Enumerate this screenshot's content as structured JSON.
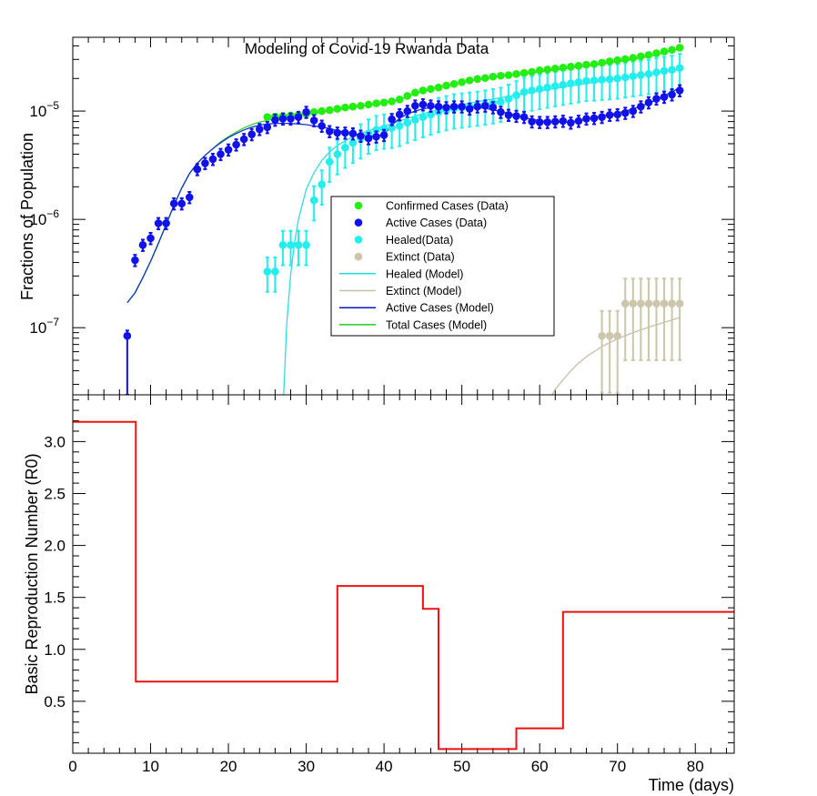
{
  "figure": {
    "title": "Modeling of Covid-19 Rwanda Data"
  },
  "top_panel": {
    "ylabel": "Fractions of Population",
    "legend": [
      {
        "label": "Confirmed Cases (Data)",
        "kind": "marker",
        "color": "#22ee11"
      },
      {
        "label": "Active Cases (Data)",
        "kind": "marker",
        "color": "#1111ee"
      },
      {
        "label": "Healed(Data)",
        "kind": "marker",
        "color": "#22eeee"
      },
      {
        "label": "Extinct (Data)",
        "kind": "marker",
        "color": "#ccc6aa"
      },
      {
        "label": "Healed (Model)",
        "kind": "line",
        "color": "#22dddd"
      },
      {
        "label": "Extinct (Model)",
        "kind": "line",
        "color": "#c8c0a8"
      },
      {
        "label": "Active Cases (Model)",
        "kind": "line",
        "color": "#1111cc"
      },
      {
        "label": "Total Cases (Model)",
        "kind": "line",
        "color": "#22cc22"
      }
    ],
    "ytick_labels": [
      {
        "base": "10",
        "exp": "−5",
        "value": 1e-05
      },
      {
        "base": "10",
        "exp": "−6",
        "value": 1e-06
      },
      {
        "base": "10",
        "exp": "−7",
        "value": 1e-07
      }
    ]
  },
  "bottom_panel": {
    "ylabel": "Basic Reproduction Number (R0)",
    "xlabel": "Time (days)",
    "xtick_labels": [
      "0",
      "10",
      "20",
      "30",
      "40",
      "50",
      "60",
      "70",
      "80"
    ],
    "ytick_labels": [
      "0.5",
      "1.0",
      "1.5",
      "2.0",
      "2.5",
      "3.0"
    ]
  },
  "colors": {
    "confirmed": "#22ee11",
    "active": "#1111ee",
    "healed": "#22eeee",
    "extinct": "#ccc6aa",
    "healed_model": "#33dddd",
    "extinct_model": "#c8c0a8",
    "active_model": "#1133cc",
    "total_model": "#33cc33",
    "r0": "#ee1111"
  },
  "chart_data": [
    {
      "type": "scatter",
      "yscale": "log",
      "xlim": [
        0,
        85
      ],
      "ylim": [
        2.4e-08,
        4.8e-05
      ],
      "series": [
        {
          "name": "Confirmed Cases (Data)",
          "x": [
            25,
            26,
            27,
            28,
            29,
            30,
            31,
            32,
            33,
            34,
            35,
            36,
            37,
            38,
            39,
            40,
            41,
            42,
            43,
            44,
            45,
            46,
            47,
            48,
            49,
            50,
            51,
            52,
            53,
            54,
            55,
            56,
            57,
            58,
            59,
            60,
            61,
            62,
            63,
            64,
            65,
            66,
            67,
            68,
            69,
            70,
            71,
            72,
            73,
            74,
            75,
            76,
            77,
            78
          ],
          "y": [
            8.8e-06,
            8.9e-06,
            9e-06,
            9.1e-06,
            9.2e-06,
            9.4e-06,
            9.8e-06,
            1e-05,
            1.02e-05,
            1.05e-05,
            1.08e-05,
            1.1e-05,
            1.12e-05,
            1.15e-05,
            1.18e-05,
            1.2e-05,
            1.23e-05,
            1.28e-05,
            1.38e-05,
            1.48e-05,
            1.55e-05,
            1.6e-05,
            1.65e-05,
            1.72e-05,
            1.78e-05,
            1.85e-05,
            1.92e-05,
            1.98e-05,
            2.02e-05,
            2.08e-05,
            2.12e-05,
            2.15e-05,
            2.2e-05,
            2.25e-05,
            2.3e-05,
            2.38e-05,
            2.42e-05,
            2.47e-05,
            2.52e-05,
            2.57e-05,
            2.62e-05,
            2.68e-05,
            2.72e-05,
            2.8e-05,
            2.88e-05,
            2.95e-05,
            3.02e-05,
            3.1e-05,
            3.2e-05,
            3.3e-05,
            3.42e-05,
            3.55e-05,
            3.68e-05,
            3.85e-05
          ]
        },
        {
          "name": "Active Cases (Data)",
          "x": [
            7,
            8,
            9,
            10,
            11,
            12,
            13,
            14,
            15,
            16,
            17,
            18,
            19,
            20,
            21,
            22,
            23,
            24,
            25,
            26,
            27,
            28,
            29,
            30,
            31,
            32,
            33,
            34,
            35,
            36,
            37,
            38,
            39,
            40,
            41,
            42,
            43,
            44,
            45,
            46,
            47,
            48,
            49,
            50,
            51,
            52,
            53,
            54,
            55,
            56,
            57,
            58,
            59,
            60,
            61,
            62,
            63,
            64,
            65,
            66,
            67,
            68,
            69,
            70,
            71,
            72,
            73,
            74,
            75,
            76,
            77,
            78
          ],
          "y": [
            8.4e-08,
            4.2e-07,
            5.8e-07,
            6.7e-07,
            9.2e-07,
            9.2e-07,
            1.4e-06,
            1.4e-06,
            1.6e-06,
            2.9e-06,
            3.3e-06,
            3.6e-06,
            4e-06,
            4.4e-06,
            4.9e-06,
            5.5e-06,
            6.1e-06,
            6.8e-06,
            7.1e-06,
            8.3e-06,
            8.5e-06,
            8.5e-06,
            8.8e-06,
            9.8e-06,
            8.2e-06,
            7.3e-06,
            6.5e-06,
            6.3e-06,
            6.3e-06,
            6.2e-06,
            5.9e-06,
            5.6e-06,
            5.8e-06,
            6e-06,
            8.4e-06,
            9.3e-06,
            1e-05,
            1.12e-05,
            1.15e-05,
            1.12e-05,
            1.1e-05,
            1.08e-05,
            1.1e-05,
            1.1e-05,
            1.05e-05,
            1.1e-05,
            1.12e-05,
            1.08e-05,
            9.8e-06,
            9.2e-06,
            9e-06,
            8.8e-06,
            8e-06,
            7.9e-06,
            7.9e-06,
            8e-06,
            8.1e-06,
            7.8e-06,
            8.1e-06,
            8.5e-06,
            8.6e-06,
            8.8e-06,
            9.2e-06,
            9.3e-06,
            9.6e-06,
            1e-05,
            1.1e-05,
            1.2e-05,
            1.3e-05,
            1.35e-05,
            1.42e-05,
            1.55e-05
          ],
          "error_rel": 0.12
        },
        {
          "name": "Healed(Data)",
          "x": [
            25,
            26,
            27,
            28,
            29,
            30,
            31,
            32,
            33,
            34,
            35,
            36,
            37,
            38,
            39,
            40,
            41,
            42,
            43,
            44,
            45,
            46,
            47,
            48,
            49,
            50,
            51,
            52,
            53,
            54,
            55,
            56,
            57,
            58,
            59,
            60,
            61,
            62,
            63,
            64,
            65,
            66,
            67,
            68,
            69,
            70,
            71,
            72,
            73,
            74,
            75,
            76,
            77,
            78
          ],
          "y": [
            3.3e-07,
            3.3e-07,
            5.8e-07,
            5.8e-07,
            5.8e-07,
            5.8e-07,
            1.5e-06,
            2.1e-06,
            3.4e-06,
            4e-06,
            4.6e-06,
            5.1e-06,
            5.6e-06,
            6.2e-06,
            6.7e-06,
            6.9e-06,
            7e-06,
            7.3e-06,
            7.8e-06,
            8.3e-06,
            8.8e-06,
            9.3e-06,
            9.8e-06,
            1.02e-05,
            1.06e-05,
            1.08e-05,
            1.1e-05,
            1.12e-05,
            1.15e-05,
            1.18e-05,
            1.22e-05,
            1.3e-05,
            1.4e-05,
            1.5e-05,
            1.55e-05,
            1.6e-05,
            1.65e-05,
            1.7e-05,
            1.75e-05,
            1.8e-05,
            1.85e-05,
            1.9e-05,
            1.92e-05,
            1.95e-05,
            1.97e-05,
            2e-05,
            2.05e-05,
            2.1e-05,
            2.15e-05,
            2.2e-05,
            2.28e-05,
            2.35e-05,
            2.4e-05,
            2.5e-05
          ],
          "error_rel": 0.35
        },
        {
          "name": "Extinct (Data)",
          "x": [
            68,
            69,
            70,
            71,
            72,
            73,
            74,
            75,
            76,
            77,
            78
          ],
          "y": [
            8.4e-08,
            8.4e-08,
            8.4e-08,
            1.67e-07,
            1.67e-07,
            1.67e-07,
            1.67e-07,
            1.67e-07,
            1.67e-07,
            1.67e-07,
            1.67e-07
          ],
          "error_rel": 0.7
        },
        {
          "name": "Healed (Model)",
          "type": "line",
          "x": [
            27.1,
            27.5,
            28,
            28.5,
            29,
            30,
            31,
            32,
            33,
            34,
            35,
            36,
            38,
            40,
            42,
            44,
            46,
            48,
            50,
            52,
            55,
            58,
            62,
            66,
            70,
            74,
            78
          ],
          "y": [
            2.4e-08,
            1.1e-07,
            3.1e-07,
            6.1e-07,
            1e-06,
            1.9e-06,
            2.7e-06,
            3.5e-06,
            4.2e-06,
            4.8e-06,
            5.3e-06,
            5.8e-06,
            6.6e-06,
            7.3e-06,
            8.1e-06,
            9e-06,
            9.9e-06,
            1.08e-05,
            1.15e-05,
            1.22e-05,
            1.33e-05,
            1.45e-05,
            1.62e-05,
            1.8e-05,
            1.98e-05,
            2.2e-05,
            2.45e-05
          ]
        },
        {
          "name": "Extinct (Model)",
          "type": "line",
          "x": [
            61.6,
            62,
            63,
            64,
            65,
            66,
            68,
            70,
            72,
            74,
            76,
            78
          ],
          "y": [
            2.4e-08,
            2.7e-08,
            3.3e-08,
            4e-08,
            4.7e-08,
            5.4e-08,
            6.7e-08,
            7.9e-08,
            9e-08,
            1.01e-07,
            1.12e-07,
            1.24e-07
          ]
        },
        {
          "name": "Active Cases (Model)",
          "type": "line",
          "x": [
            7,
            8,
            9,
            10,
            11,
            12,
            13,
            14,
            15,
            16,
            17,
            18,
            19,
            20,
            21,
            22,
            23,
            24,
            25,
            26,
            27,
            28,
            29,
            30,
            31,
            32,
            33,
            34,
            35,
            36,
            37,
            38,
            39,
            40,
            41,
            42,
            43,
            44,
            45,
            46,
            47,
            48,
            49,
            50,
            51,
            52,
            53,
            54,
            55,
            56,
            57,
            58,
            59,
            60,
            61,
            62,
            63,
            64,
            65,
            66,
            67,
            68,
            69,
            70,
            71,
            72,
            73,
            74,
            75,
            76,
            77,
            78
          ],
          "y": [
            1.7e-07,
            2.1e-07,
            2.9e-07,
            4.1e-07,
            6e-07,
            9e-07,
            1.35e-06,
            1.95e-06,
            2.65e-06,
            3.3e-06,
            3.9e-06,
            4.5e-06,
            5.1e-06,
            5.7e-06,
            6.2e-06,
            6.7e-06,
            7.1e-06,
            7.4e-06,
            7.6e-06,
            7.7e-06,
            7.7e-06,
            7.7e-06,
            7.6e-06,
            7.5e-06,
            7.3e-06,
            7.1e-06,
            6.9e-06,
            6.6e-06,
            6.4e-06,
            6.2e-06,
            6e-06,
            5.9e-06,
            5.85e-06,
            6.1e-06,
            7.4e-06,
            8.6e-06,
            9.4e-06,
            1e-05,
            1.05e-05,
            1.08e-05,
            1.1e-05,
            1.1e-05,
            1.1e-05,
            1.1e-05,
            1.09e-05,
            1.08e-05,
            1.06e-05,
            1.03e-05,
            9.9e-06,
            9.5e-06,
            9.1e-06,
            8.7e-06,
            8.4e-06,
            8.2e-06,
            8e-06,
            7.9e-06,
            7.9e-06,
            7.95e-06,
            8.1e-06,
            8.35e-06,
            8.65e-06,
            8.95e-06,
            9.3e-06,
            9.65e-06,
            1e-05,
            1.05e-05,
            1.11e-05,
            1.18e-05,
            1.27e-05,
            1.38e-05,
            1.5e-05,
            1.65e-05
          ]
        },
        {
          "name": "Total Cases (Model)",
          "type": "line",
          "x": [
            7,
            8,
            9,
            10,
            11,
            12,
            13,
            14,
            15,
            16,
            17,
            18,
            19,
            20,
            21,
            22,
            23,
            24,
            25,
            26,
            27,
            28,
            29,
            30,
            32,
            34,
            36,
            38,
            40,
            42,
            44,
            46,
            48,
            50,
            52,
            54,
            56,
            58,
            60,
            62,
            64,
            66,
            68,
            70,
            72,
            74,
            76,
            78
          ],
          "y": [
            1.7e-07,
            2.1e-07,
            2.9e-07,
            4.1e-07,
            6e-07,
            9e-07,
            1.35e-06,
            1.95e-06,
            2.65e-06,
            3.3e-06,
            3.9e-06,
            4.5e-06,
            5.2e-06,
            5.8e-06,
            6.4e-06,
            7e-06,
            7.5e-06,
            7.9e-06,
            8.2e-06,
            8.5e-06,
            8.7e-06,
            8.9e-06,
            9.1e-06,
            9.3e-06,
            9.8e-06,
            1.03e-05,
            1.08e-05,
            1.13e-05,
            1.18e-05,
            1.28e-05,
            1.45e-05,
            1.6e-05,
            1.72e-05,
            1.83e-05,
            1.95e-05,
            2.05e-05,
            2.13e-05,
            2.2e-05,
            2.3e-05,
            2.4e-05,
            2.5e-05,
            2.6e-05,
            2.72e-05,
            2.85e-05,
            3e-05,
            3.2e-05,
            3.45e-05,
            3.8e-05
          ]
        }
      ]
    },
    {
      "type": "line",
      "xlabel": "Time (days)",
      "ylabel": "Basic Reproduction Number (R0)",
      "xlim": [
        0,
        85
      ],
      "ylim": [
        0,
        3.45
      ],
      "series": [
        {
          "name": "R0",
          "step": true,
          "x": [
            0,
            8.1,
            8.1,
            34,
            34,
            45,
            45,
            47,
            47,
            57,
            57,
            63,
            63,
            85
          ],
          "y": [
            3.19,
            3.19,
            0.69,
            0.69,
            1.61,
            1.61,
            1.39,
            1.39,
            0.04,
            0.04,
            0.24,
            0.24,
            1.36,
            1.36
          ]
        }
      ]
    }
  ]
}
